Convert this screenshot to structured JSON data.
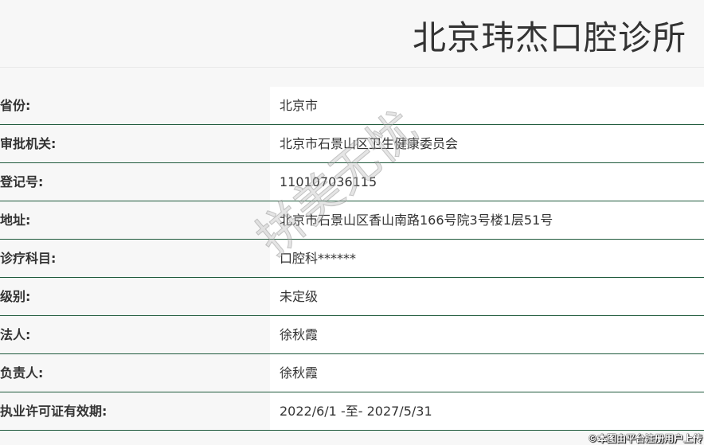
{
  "title": "北京玮杰口腔诊所",
  "rows": [
    {
      "label": "省份:",
      "value": "北京市"
    },
    {
      "label": "审批机关:",
      "value": "北京市石景山区卫生健康委员会"
    },
    {
      "label": "登记号:",
      "value": "110107036115"
    },
    {
      "label": "地址:",
      "value": "北京市石景山区香山南路166号院3号楼1层51号"
    },
    {
      "label": "诊疗科目:",
      "value": "口腔科******"
    },
    {
      "label": "级别:",
      "value": "未定级"
    },
    {
      "label": "法人:",
      "value": "徐秋霞"
    },
    {
      "label": "负责人:",
      "value": "徐秋霞"
    },
    {
      "label": "执业许可证有效期:",
      "value": "2022/6/1 -至- 2027/5/31"
    }
  ],
  "watermark": "拼美无忧",
  "credit": "©本图由平台注册用户上传"
}
